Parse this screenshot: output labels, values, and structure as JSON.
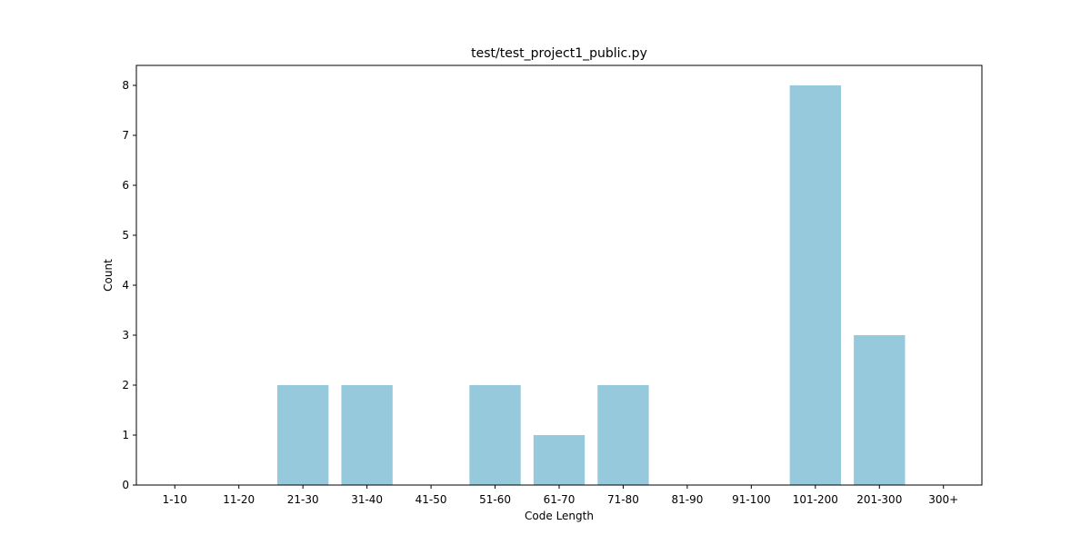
{
  "chart_data": {
    "type": "bar",
    "title": "test/test_project1_public.py",
    "xlabel": "Code Length",
    "ylabel": "Count",
    "categories": [
      "1-10",
      "11-20",
      "21-30",
      "31-40",
      "41-50",
      "51-60",
      "61-70",
      "71-80",
      "81-90",
      "91-100",
      "101-200",
      "201-300",
      "300+"
    ],
    "values": [
      0,
      0,
      2,
      2,
      0,
      2,
      1,
      2,
      0,
      0,
      8,
      3,
      0
    ],
    "ylim": [
      0,
      8.4
    ],
    "yticks": [
      0,
      1,
      2,
      3,
      4,
      5,
      6,
      7,
      8
    ],
    "bar_color": "#96c9dc",
    "grid": false
  }
}
